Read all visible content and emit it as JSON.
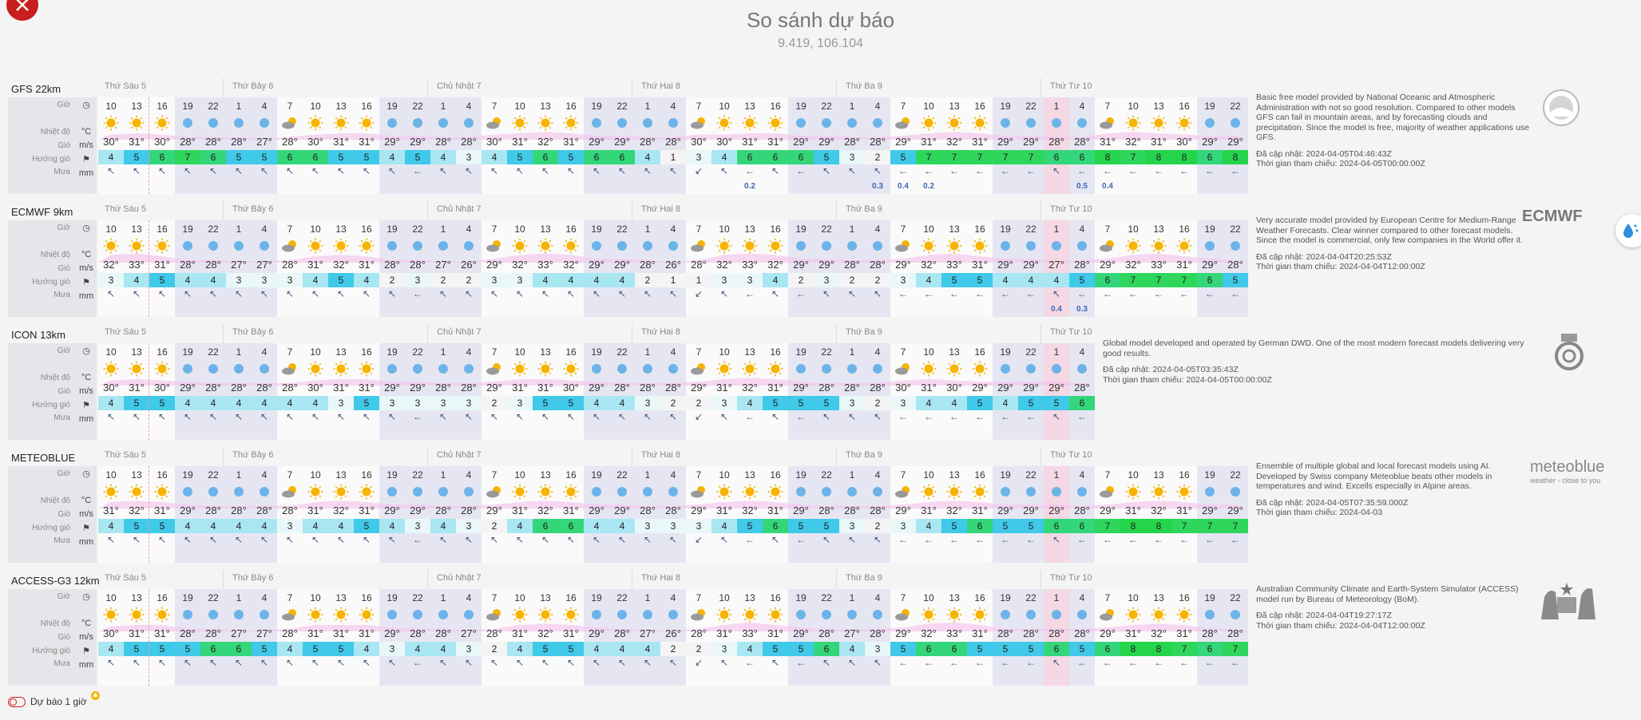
{
  "header": {
    "title": "So sánh dự báo",
    "coords": "9.419, 106.104"
  },
  "row_labels": {
    "hour": "Giờ",
    "temp": "Nhiệt độ",
    "wind": "Gió",
    "direction": "Hướng gió",
    "rain": "Mưa"
  },
  "units": {
    "temp": "°C",
    "wind": "m/s",
    "rain": "mm"
  },
  "hours": [
    10,
    13,
    16,
    19,
    22,
    1,
    4,
    7,
    10,
    13,
    16,
    19,
    22,
    1,
    4,
    7,
    10,
    13,
    16,
    19,
    22,
    1,
    4,
    7,
    10,
    13,
    16,
    19,
    22,
    1,
    4,
    7,
    10,
    13,
    16,
    19,
    22,
    1,
    4,
    7,
    10,
    13,
    16,
    19,
    22
  ],
  "day_names": [
    "Thứ Sáu 5",
    "Thứ Bảy 6",
    "Chủ Nhật 7",
    "Thứ Hai 8",
    "Thứ Ba 9",
    "Thứ Tư 10"
  ],
  "footer": {
    "label": "Dự báo 1 giờ",
    "badge": "✱"
  },
  "models": [
    {
      "name": "GFS 22km",
      "desc": "Basic free model provided by National Oceanic and Atmospheric Administration with not so good resolution. Compared to other models GFS can fail in mountain areas, and by forecasting clouds and precipitation. Since the model is free, majority of weather applications use GFS.",
      "updated": "Đã cập nhật: 2024-04-05T04:46:43Z",
      "reference": "Thời gian tham chiếu: 2024-04-05T00:00:00Z",
      "logo": "noaa-logo",
      "logo_text": "NOAA",
      "temps": [
        "30°",
        "31°",
        "30°",
        "28°",
        "28°",
        "28°",
        "27°",
        "28°",
        "30°",
        "31°",
        "31°",
        "29°",
        "29°",
        "28°",
        "28°",
        "30°",
        "31°",
        "32°",
        "31°",
        "29°",
        "29°",
        "28°",
        "28°",
        "30°",
        "30°",
        "31°",
        "31°",
        "29°",
        "29°",
        "28°",
        "28°",
        "29°",
        "31°",
        "32°",
        "31°",
        "29°",
        "29°",
        "28°",
        "28°",
        "31°",
        "32°",
        "31°",
        "30°",
        "29°",
        "29°"
      ],
      "winds": [
        4,
        5,
        6,
        7,
        6,
        5,
        5,
        6,
        6,
        5,
        5,
        4,
        5,
        4,
        3,
        4,
        5,
        6,
        5,
        6,
        6,
        4,
        1,
        3,
        4,
        6,
        6,
        6,
        5,
        3,
        2,
        5,
        7,
        7,
        7,
        7,
        7,
        6,
        6,
        8,
        7,
        8,
        8,
        6,
        8
      ],
      "rain": [
        "",
        "",
        "",
        "",
        "",
        "",
        "",
        "",
        "",
        "",
        "",
        "",
        "",
        "",
        "",
        "",
        "",
        "",
        "",
        "",
        "",
        "",
        "",
        "",
        "",
        "0.2",
        "",
        "",
        "",
        "",
        "0.3",
        "0.4",
        "0.2",
        "",
        "",
        "",
        "",
        "",
        "0.5",
        "0.4",
        "",
        "",
        "",
        "",
        ""
      ]
    },
    {
      "name": "ECMWF 9km",
      "desc": "Very accurate model provided by European Centre for Medium-Range Weather Forecasts. Clear winner compared to other forecast models. Since the model is commercial, only few companies in the World offer it.",
      "updated": "Đã cập nhật: 2024-04-04T20:25:53Z",
      "reference": "Thời gian tham chiếu: 2024-04-04T12:00:00Z",
      "logo": "ecmwf-logo",
      "logo_text": "ECMWF",
      "temps": [
        "32°",
        "33°",
        "31°",
        "28°",
        "28°",
        "27°",
        "27°",
        "28°",
        "31°",
        "32°",
        "31°",
        "28°",
        "28°",
        "27°",
        "26°",
        "29°",
        "32°",
        "33°",
        "32°",
        "29°",
        "29°",
        "28°",
        "26°",
        "28°",
        "32°",
        "33°",
        "32°",
        "29°",
        "29°",
        "28°",
        "28°",
        "29°",
        "32°",
        "33°",
        "31°",
        "29°",
        "29°",
        "27°",
        "28°",
        "29°",
        "32°",
        "33°",
        "31°",
        "29°",
        "28°"
      ],
      "winds": [
        3,
        4,
        5,
        4,
        4,
        3,
        3,
        3,
        4,
        5,
        4,
        2,
        3,
        2,
        2,
        3,
        3,
        4,
        4,
        4,
        4,
        2,
        1,
        1,
        3,
        3,
        4,
        2,
        3,
        2,
        2,
        3,
        4,
        5,
        5,
        4,
        4,
        4,
        5,
        6,
        7,
        7,
        7,
        6,
        5
      ],
      "rain": [
        "",
        "",
        "",
        "",
        "",
        "",
        "",
        "",
        "",
        "",
        "",
        "",
        "",
        "",
        "",
        "",
        "",
        "",
        "",
        "",
        "",
        "",
        "",
        "",
        "",
        "",
        "",
        "",
        "",
        "",
        "",
        "",
        "",
        "",
        "",
        "",
        "",
        "0.4",
        "0.3",
        "",
        "",
        "",
        "",
        "",
        ""
      ]
    },
    {
      "name": "ICON 13km",
      "desc": "Global model developed and operated by German DWD. One of the most modern forecast models delivering very good results.",
      "updated": "Đã cập nhật: 2024-04-05T03:35:43Z",
      "reference": "Thời gian tham chiếu: 2024-04-05T00:00:00Z",
      "logo": "dwd-logo",
      "logo_text": "DWD",
      "temps": [
        "30°",
        "31°",
        "30°",
        "29°",
        "28°",
        "28°",
        "28°",
        "28°",
        "30°",
        "31°",
        "31°",
        "29°",
        "29°",
        "28°",
        "28°",
        "29°",
        "31°",
        "31°",
        "30°",
        "29°",
        "28°",
        "28°",
        "28°",
        "29°",
        "31°",
        "32°",
        "31°",
        "29°",
        "28°",
        "28°",
        "28°",
        "30°",
        "31°",
        "30°",
        "29°",
        "29°",
        "29°",
        "29°",
        "28°"
      ],
      "winds": [
        4,
        5,
        5,
        4,
        4,
        4,
        4,
        4,
        4,
        3,
        5,
        3,
        3,
        3,
        3,
        2,
        3,
        5,
        5,
        4,
        4,
        3,
        2,
        2,
        3,
        4,
        5,
        5,
        5,
        3,
        2,
        3,
        4,
        4,
        5,
        4,
        5,
        5,
        6
      ],
      "rain": []
    },
    {
      "name": "METEOBLUE",
      "desc": "Ensemble of multiple global and local forecast models using AI. Developed by Swiss company Meteoblue beats other models in temperatures and wind. Excells especially in Alpine areas.",
      "updated": "Đã cập nhật: 2024-04-05T07:35:59.000Z",
      "reference": "Thời gian tham chiếu: 2024-04-03",
      "logo": "meteoblue-logo",
      "logo_text": "meteoblue",
      "logo_sub": "weather ◦ close to you",
      "temps": [
        "31°",
        "32°",
        "31°",
        "29°",
        "28°",
        "28°",
        "28°",
        "28°",
        "31°",
        "32°",
        "31°",
        "29°",
        "29°",
        "28°",
        "28°",
        "29°",
        "31°",
        "32°",
        "31°",
        "29°",
        "29°",
        "28°",
        "28°",
        "29°",
        "31°",
        "32°",
        "31°",
        "29°",
        "28°",
        "28°",
        "28°",
        "29°",
        "31°",
        "32°",
        "31°",
        "29°",
        "29°",
        "29°",
        "28°",
        "29°",
        "31°",
        "32°",
        "31°",
        "29°",
        "29°"
      ],
      "winds": [
        4,
        5,
        5,
        4,
        4,
        4,
        4,
        3,
        4,
        4,
        5,
        4,
        3,
        4,
        3,
        2,
        4,
        6,
        6,
        4,
        4,
        3,
        3,
        3,
        4,
        5,
        6,
        5,
        5,
        3,
        2,
        3,
        4,
        5,
        6,
        5,
        5,
        6,
        6,
        7,
        8,
        8,
        7,
        7,
        7
      ],
      "rain": []
    },
    {
      "name": "ACCESS-G3 12km",
      "desc": "Australian Community Climate and Earth-System Simulator (ACCESS) model run by Bureau of Meteorology (BoM).",
      "updated": "Đã cập nhật: 2024-04-04T19:27:17Z",
      "reference": "Thời gian tham chiếu: 2024-04-04T12:00:00Z",
      "logo": "bom-logo",
      "logo_text": "",
      "temps": [
        "30°",
        "31°",
        "31°",
        "28°",
        "28°",
        "27°",
        "27°",
        "28°",
        "31°",
        "31°",
        "31°",
        "29°",
        "28°",
        "28°",
        "27°",
        "28°",
        "31°",
        "32°",
        "31°",
        "29°",
        "28°",
        "27°",
        "26°",
        "28°",
        "31°",
        "33°",
        "31°",
        "29°",
        "28°",
        "27°",
        "28°",
        "29°",
        "32°",
        "33°",
        "31°",
        "28°",
        "28°",
        "28°",
        "28°",
        "29°",
        "31°",
        "32°",
        "31°",
        "28°",
        "28°"
      ],
      "winds": [
        4,
        5,
        5,
        5,
        6,
        6,
        5,
        4,
        5,
        5,
        4,
        3,
        4,
        4,
        3,
        2,
        4,
        5,
        5,
        4,
        4,
        4,
        2,
        2,
        3,
        4,
        5,
        5,
        6,
        4,
        3,
        5,
        6,
        6,
        5,
        5,
        5,
        6,
        5,
        6,
        8,
        8,
        7,
        6,
        7
      ],
      "rain": []
    }
  ]
}
